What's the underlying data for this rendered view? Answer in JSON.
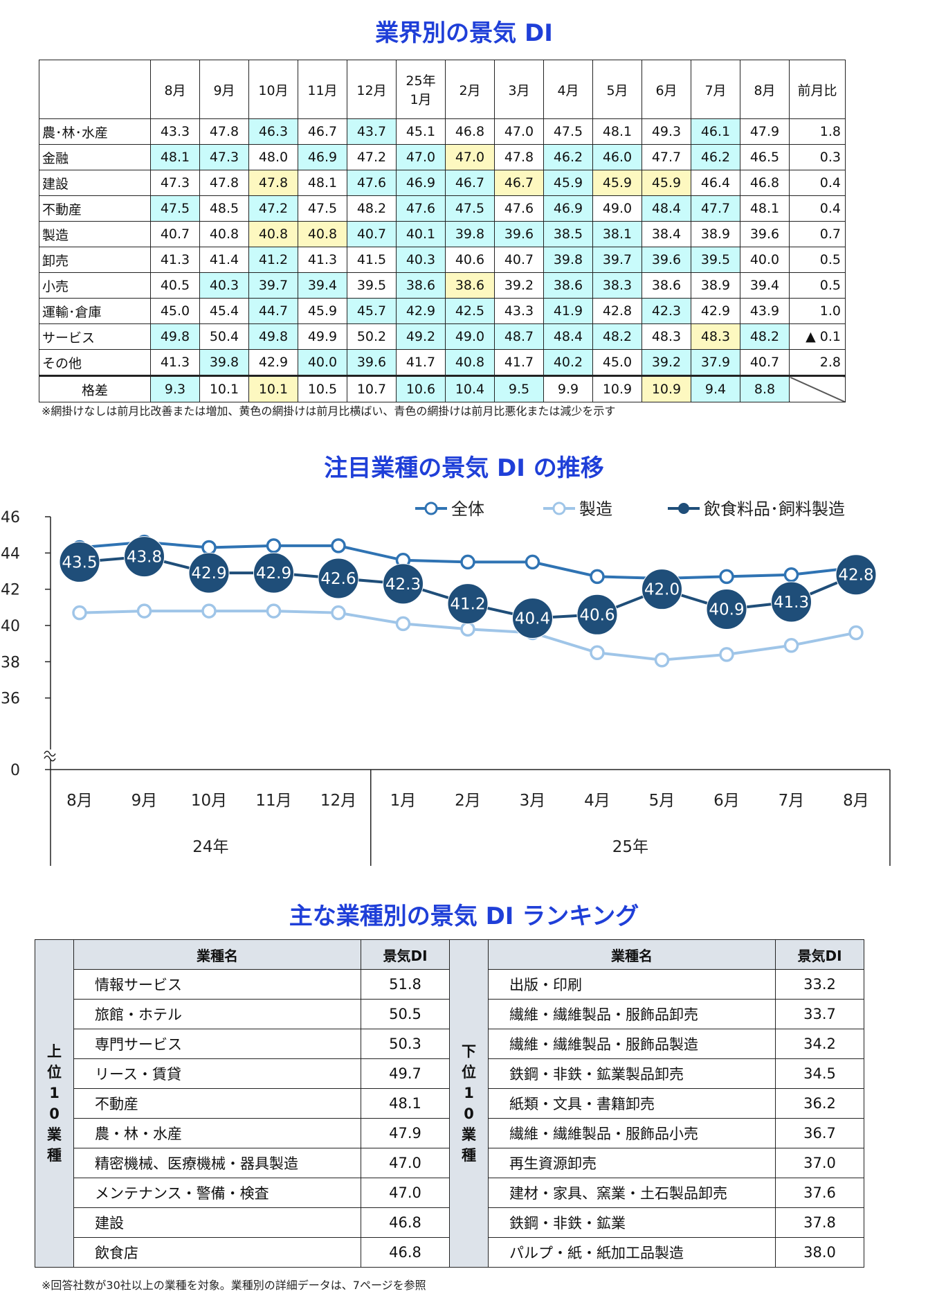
{
  "table1": {
    "title": "業界別の景気 DI",
    "headers": [
      "",
      "8月",
      "9月",
      "10月",
      "11月",
      "12月",
      "25年\n1月",
      "2月",
      "3月",
      "4月",
      "5月",
      "6月",
      "7月",
      "8月",
      "前月比"
    ],
    "rows": [
      {
        "name": "農･林･水産",
        "values": [
          "43.3",
          "47.8",
          "46.3",
          "46.7",
          "43.7",
          "45.1",
          "46.8",
          "47.0",
          "47.5",
          "48.1",
          "49.3",
          "46.1",
          "47.9"
        ],
        "shade": [
          "",
          "",
          "g",
          "",
          "g",
          "",
          "",
          "",
          "",
          "",
          "",
          "g",
          ""
        ],
        "mom": "1.8"
      },
      {
        "name": "金融",
        "values": [
          "48.1",
          "47.3",
          "48.0",
          "46.9",
          "47.2",
          "47.0",
          "47.0",
          "47.8",
          "46.2",
          "46.0",
          "47.7",
          "46.2",
          "46.5"
        ],
        "shade": [
          "g",
          "g",
          "",
          "g",
          "",
          "g",
          "y",
          "",
          "g",
          "g",
          "",
          "g",
          ""
        ],
        "mom": "0.3"
      },
      {
        "name": "建設",
        "values": [
          "47.3",
          "47.8",
          "47.8",
          "48.1",
          "47.6",
          "46.9",
          "46.7",
          "46.7",
          "45.9",
          "45.9",
          "45.9",
          "46.4",
          "46.8"
        ],
        "shade": [
          "",
          "",
          "y",
          "",
          "g",
          "g",
          "g",
          "y",
          "g",
          "y",
          "y",
          "",
          ""
        ],
        "mom": "0.4"
      },
      {
        "name": "不動産",
        "values": [
          "47.5",
          "48.5",
          "47.2",
          "47.5",
          "48.2",
          "47.6",
          "47.5",
          "47.6",
          "46.9",
          "49.0",
          "48.4",
          "47.7",
          "48.1"
        ],
        "shade": [
          "g",
          "",
          "g",
          "",
          "",
          "g",
          "g",
          "",
          "g",
          "",
          "g",
          "g",
          ""
        ],
        "mom": "0.4"
      },
      {
        "name": "製造",
        "values": [
          "40.7",
          "40.8",
          "40.8",
          "40.8",
          "40.7",
          "40.1",
          "39.8",
          "39.6",
          "38.5",
          "38.1",
          "38.4",
          "38.9",
          "39.6"
        ],
        "shade": [
          "",
          "",
          "y",
          "y",
          "g",
          "g",
          "g",
          "g",
          "g",
          "g",
          "",
          "",
          ""
        ],
        "mom": "0.7"
      },
      {
        "name": "卸売",
        "values": [
          "41.3",
          "41.4",
          "41.2",
          "41.3",
          "41.5",
          "40.3",
          "40.6",
          "40.7",
          "39.8",
          "39.7",
          "39.6",
          "39.5",
          "40.0"
        ],
        "shade": [
          "",
          "",
          "g",
          "",
          "",
          "g",
          "",
          "",
          "g",
          "g",
          "g",
          "g",
          ""
        ],
        "mom": "0.5"
      },
      {
        "name": "小売",
        "values": [
          "40.5",
          "40.3",
          "39.7",
          "39.4",
          "39.5",
          "38.6",
          "38.6",
          "39.2",
          "38.6",
          "38.3",
          "38.6",
          "38.9",
          "39.4"
        ],
        "shade": [
          "",
          "g",
          "g",
          "g",
          "",
          "g",
          "y",
          "",
          "g",
          "g",
          "",
          "",
          ""
        ],
        "mom": "0.5"
      },
      {
        "name": "運輸･倉庫",
        "values": [
          "45.0",
          "45.4",
          "44.7",
          "45.9",
          "45.7",
          "42.9",
          "42.5",
          "43.3",
          "41.9",
          "42.8",
          "42.3",
          "42.9",
          "43.9"
        ],
        "shade": [
          "",
          "",
          "g",
          "",
          "g",
          "g",
          "g",
          "",
          "g",
          "",
          "g",
          "",
          ""
        ],
        "mom": "1.0"
      },
      {
        "name": "サービス",
        "values": [
          "49.8",
          "50.4",
          "49.8",
          "49.9",
          "50.2",
          "49.2",
          "49.0",
          "48.7",
          "48.4",
          "48.2",
          "48.3",
          "48.3",
          "48.2"
        ],
        "shade": [
          "g",
          "",
          "g",
          "",
          "",
          "g",
          "g",
          "g",
          "g",
          "g",
          "",
          "y",
          "g"
        ],
        "mom": "▲ 0.1"
      },
      {
        "name": "その他",
        "values": [
          "41.3",
          "39.8",
          "42.9",
          "40.0",
          "39.6",
          "41.7",
          "40.8",
          "41.7",
          "40.2",
          "45.0",
          "39.2",
          "37.9",
          "40.7"
        ],
        "shade": [
          "",
          "g",
          "",
          "g",
          "g",
          "",
          "g",
          "",
          "g",
          "",
          "g",
          "g",
          ""
        ],
        "mom": "2.8"
      }
    ],
    "gap_row": {
      "name": "格差",
      "values": [
        "9.3",
        "10.1",
        "10.1",
        "10.5",
        "10.7",
        "10.6",
        "10.4",
        "9.5",
        "9.9",
        "10.9",
        "10.9",
        "9.4",
        "8.8"
      ],
      "shade": [
        "g",
        "",
        "y",
        "",
        "",
        "g",
        "g",
        "g",
        "",
        "",
        "y",
        "g",
        "g"
      ]
    },
    "note": "※網掛けなしは前月比改善または増加、黄色の網掛けは前月比横ばい、青色の網掛けは前月比悪化または減少を示す",
    "colors": {
      "green": "#c9fbfb",
      "yellow": "#fdf8c0"
    }
  },
  "chart_data": {
    "type": "line",
    "title": "注目業種の景気 DI の推移",
    "categories": [
      "8月",
      "9月",
      "10月",
      "11月",
      "12月",
      "1月",
      "2月",
      "3月",
      "4月",
      "5月",
      "6月",
      "7月",
      "8月"
    ],
    "year_groups": [
      {
        "label": "24年",
        "count": 5
      },
      {
        "label": "25年",
        "count": 8
      }
    ],
    "y_ticks": [
      "0",
      "36",
      "38",
      "40",
      "42",
      "44",
      "46"
    ],
    "ylim": [
      34,
      46
    ],
    "series": [
      {
        "name": "全体",
        "values": [
          44.3,
          44.6,
          44.3,
          44.4,
          44.4,
          43.6,
          43.5,
          43.5,
          42.7,
          42.6,
          42.7,
          42.8,
          43.2
        ],
        "color": "#2f73b3",
        "style": "open"
      },
      {
        "name": "製造",
        "values": [
          40.7,
          40.8,
          40.8,
          40.8,
          40.7,
          40.1,
          39.8,
          39.6,
          38.5,
          38.1,
          38.4,
          38.9,
          39.6
        ],
        "color": "#9fc5e8",
        "style": "open"
      },
      {
        "name": "飲食料品･飼料製造",
        "values": [
          43.5,
          43.8,
          42.9,
          42.9,
          42.6,
          42.3,
          41.2,
          40.4,
          40.6,
          42.0,
          40.9,
          41.3,
          42.8
        ],
        "color": "#1f4e79",
        "style": "labeled"
      }
    ],
    "legend_position": "top-right",
    "axis_break": true
  },
  "ranking": {
    "title": "主な業種別の景気 DI ランキング",
    "col_name": "業種名",
    "col_value": "景気DI",
    "top_label": "上位10業種",
    "bottom_label": "下位10業種",
    "top": [
      {
        "name": "情報サービス",
        "value": "51.8"
      },
      {
        "name": "旅館・ホテル",
        "value": "50.5"
      },
      {
        "name": "専門サービス",
        "value": "50.3"
      },
      {
        "name": "リース・賃貸",
        "value": "49.7"
      },
      {
        "name": "不動産",
        "value": "48.1"
      },
      {
        "name": "農・林・水産",
        "value": "47.9"
      },
      {
        "name": "精密機械、医療機械・器具製造",
        "value": "47.0"
      },
      {
        "name": "メンテナンス・警備・検査",
        "value": "47.0"
      },
      {
        "name": "建設",
        "value": "46.8"
      },
      {
        "name": "飲食店",
        "value": "46.8"
      }
    ],
    "bottom": [
      {
        "name": "出版・印刷",
        "value": "33.2"
      },
      {
        "name": "繊維・繊維製品・服飾品卸売",
        "value": "33.7"
      },
      {
        "name": "繊維・繊維製品・服飾品製造",
        "value": "34.2"
      },
      {
        "name": "鉄鋼・非鉄・鉱業製品卸売",
        "value": "34.5"
      },
      {
        "name": "紙類・文具・書籍卸売",
        "value": "36.2"
      },
      {
        "name": "繊維・繊維製品・服飾品小売",
        "value": "36.7"
      },
      {
        "name": "再生資源卸売",
        "value": "37.0"
      },
      {
        "name": "建材・家具、窯業・土石製品卸売",
        "value": "37.6"
      },
      {
        "name": "鉄鋼・非鉄・鉱業",
        "value": "37.8"
      },
      {
        "name": "パルプ・紙・紙加工品製造",
        "value": "38.0"
      }
    ],
    "note": "※回答社数が30社以上の業種を対象。業種別の詳細データは、7ページを参照"
  }
}
